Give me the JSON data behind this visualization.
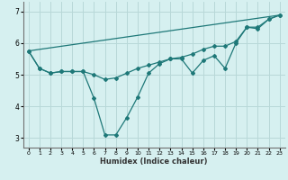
{
  "xlabel": "Humidex (Indice chaleur)",
  "background_color": "#d6f0f0",
  "grid_color": "#b8d8d8",
  "line_color": "#1e7878",
  "xlim": [
    -0.5,
    23.5
  ],
  "ylim": [
    2.7,
    7.3
  ],
  "yticks": [
    3,
    4,
    5,
    6,
    7
  ],
  "xticks": [
    0,
    1,
    2,
    3,
    4,
    5,
    6,
    7,
    8,
    9,
    10,
    11,
    12,
    13,
    14,
    15,
    16,
    17,
    18,
    19,
    20,
    21,
    22,
    23
  ],
  "series1_x": [
    0,
    1,
    2,
    3,
    4,
    5,
    6,
    7,
    8,
    9,
    10,
    11,
    12,
    13,
    14,
    15,
    16,
    17,
    18,
    19,
    20,
    21,
    22,
    23
  ],
  "series1_y": [
    5.75,
    5.2,
    5.05,
    5.1,
    5.1,
    5.1,
    4.25,
    3.1,
    3.1,
    3.65,
    4.3,
    5.05,
    5.35,
    5.5,
    5.5,
    5.05,
    5.45,
    5.6,
    5.2,
    6.0,
    6.5,
    6.45,
    6.75,
    6.88
  ],
  "series2_x": [
    0,
    1,
    2,
    3,
    4,
    5,
    6,
    7,
    8,
    9,
    10,
    11,
    12,
    13,
    14,
    15,
    16,
    17,
    18,
    19,
    20,
    21,
    22,
    23
  ],
  "series2_y": [
    5.75,
    5.2,
    5.05,
    5.1,
    5.1,
    5.1,
    5.0,
    4.85,
    4.9,
    5.05,
    5.2,
    5.3,
    5.4,
    5.5,
    5.55,
    5.65,
    5.8,
    5.9,
    5.9,
    6.05,
    6.5,
    6.5,
    6.75,
    6.88
  ],
  "series3_x": [
    0,
    23
  ],
  "series3_y": [
    5.75,
    6.88
  ]
}
